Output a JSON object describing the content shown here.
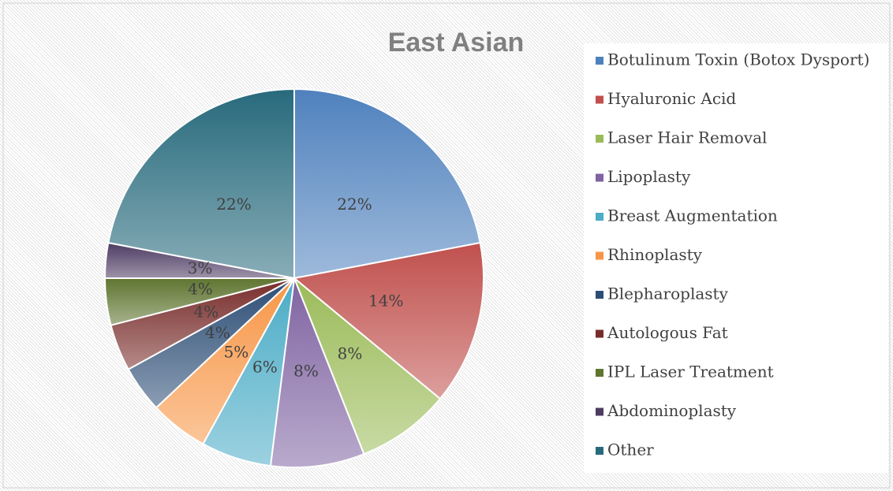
{
  "chart_data": {
    "type": "pie",
    "title": "East Asian",
    "categories": [
      "Botulinum Toxin (Botox Dysport)",
      "Hyaluronic Acid",
      "Laser Hair Removal",
      "Lipoplasty",
      "Breast Augmentation",
      "Rhinoplasty",
      "Blepharoplasty",
      "Autologous Fat",
      "IPL Laser Treatment",
      "Abdominoplasty",
      "Other"
    ],
    "values": [
      22,
      14,
      8,
      8,
      6,
      5,
      4,
      4,
      4,
      3,
      22
    ],
    "value_labels": [
      "22%",
      "14%",
      "8%",
      "8%",
      "6%",
      "5%",
      "4%",
      "4%",
      "4%",
      "3%",
      "22%"
    ],
    "colors": [
      "#4f81bd",
      "#c0504d",
      "#9bbb59",
      "#8064a2",
      "#4bacc6",
      "#f79646",
      "#2c4d75",
      "#772c2a",
      "#5f7530",
      "#4d3b62",
      "#276a7c"
    ],
    "legend": "right"
  }
}
